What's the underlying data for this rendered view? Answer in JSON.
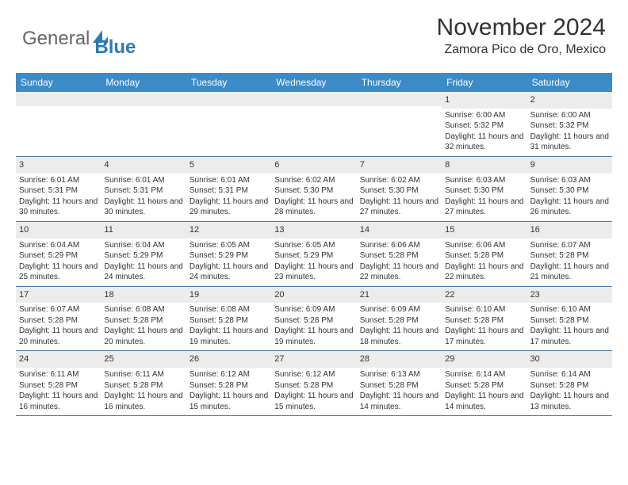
{
  "logo": {
    "general": "General",
    "blue": "Blue"
  },
  "title": "November 2024",
  "location": "Zamora Pico de Oro, Mexico",
  "colors": {
    "header_bg": "#3b8bc9",
    "header_text": "#ffffff",
    "daynum_bg": "#ececec",
    "row_border": "#4a7aa5",
    "text": "#333333",
    "logo_blue": "#2a7ab9"
  },
  "weekdays": [
    "Sunday",
    "Monday",
    "Tuesday",
    "Wednesday",
    "Thursday",
    "Friday",
    "Saturday"
  ],
  "weeks": [
    [
      {
        "n": "",
        "lines": []
      },
      {
        "n": "",
        "lines": []
      },
      {
        "n": "",
        "lines": []
      },
      {
        "n": "",
        "lines": []
      },
      {
        "n": "",
        "lines": []
      },
      {
        "n": "1",
        "lines": [
          "Sunrise: 6:00 AM",
          "Sunset: 5:32 PM",
          "Daylight: 11 hours and 32 minutes."
        ]
      },
      {
        "n": "2",
        "lines": [
          "Sunrise: 6:00 AM",
          "Sunset: 5:32 PM",
          "Daylight: 11 hours and 31 minutes."
        ]
      }
    ],
    [
      {
        "n": "3",
        "lines": [
          "Sunrise: 6:01 AM",
          "Sunset: 5:31 PM",
          "Daylight: 11 hours and 30 minutes."
        ]
      },
      {
        "n": "4",
        "lines": [
          "Sunrise: 6:01 AM",
          "Sunset: 5:31 PM",
          "Daylight: 11 hours and 30 minutes."
        ]
      },
      {
        "n": "5",
        "lines": [
          "Sunrise: 6:01 AM",
          "Sunset: 5:31 PM",
          "Daylight: 11 hours and 29 minutes."
        ]
      },
      {
        "n": "6",
        "lines": [
          "Sunrise: 6:02 AM",
          "Sunset: 5:30 PM",
          "Daylight: 11 hours and 28 minutes."
        ]
      },
      {
        "n": "7",
        "lines": [
          "Sunrise: 6:02 AM",
          "Sunset: 5:30 PM",
          "Daylight: 11 hours and 27 minutes."
        ]
      },
      {
        "n": "8",
        "lines": [
          "Sunrise: 6:03 AM",
          "Sunset: 5:30 PM",
          "Daylight: 11 hours and 27 minutes."
        ]
      },
      {
        "n": "9",
        "lines": [
          "Sunrise: 6:03 AM",
          "Sunset: 5:30 PM",
          "Daylight: 11 hours and 26 minutes."
        ]
      }
    ],
    [
      {
        "n": "10",
        "lines": [
          "Sunrise: 6:04 AM",
          "Sunset: 5:29 PM",
          "Daylight: 11 hours and 25 minutes."
        ]
      },
      {
        "n": "11",
        "lines": [
          "Sunrise: 6:04 AM",
          "Sunset: 5:29 PM",
          "Daylight: 11 hours and 24 minutes."
        ]
      },
      {
        "n": "12",
        "lines": [
          "Sunrise: 6:05 AM",
          "Sunset: 5:29 PM",
          "Daylight: 11 hours and 24 minutes."
        ]
      },
      {
        "n": "13",
        "lines": [
          "Sunrise: 6:05 AM",
          "Sunset: 5:29 PM",
          "Daylight: 11 hours and 23 minutes."
        ]
      },
      {
        "n": "14",
        "lines": [
          "Sunrise: 6:06 AM",
          "Sunset: 5:28 PM",
          "Daylight: 11 hours and 22 minutes."
        ]
      },
      {
        "n": "15",
        "lines": [
          "Sunrise: 6:06 AM",
          "Sunset: 5:28 PM",
          "Daylight: 11 hours and 22 minutes."
        ]
      },
      {
        "n": "16",
        "lines": [
          "Sunrise: 6:07 AM",
          "Sunset: 5:28 PM",
          "Daylight: 11 hours and 21 minutes."
        ]
      }
    ],
    [
      {
        "n": "17",
        "lines": [
          "Sunrise: 6:07 AM",
          "Sunset: 5:28 PM",
          "Daylight: 11 hours and 20 minutes."
        ]
      },
      {
        "n": "18",
        "lines": [
          "Sunrise: 6:08 AM",
          "Sunset: 5:28 PM",
          "Daylight: 11 hours and 20 minutes."
        ]
      },
      {
        "n": "19",
        "lines": [
          "Sunrise: 6:08 AM",
          "Sunset: 5:28 PM",
          "Daylight: 11 hours and 19 minutes."
        ]
      },
      {
        "n": "20",
        "lines": [
          "Sunrise: 6:09 AM",
          "Sunset: 5:28 PM",
          "Daylight: 11 hours and 19 minutes."
        ]
      },
      {
        "n": "21",
        "lines": [
          "Sunrise: 6:09 AM",
          "Sunset: 5:28 PM",
          "Daylight: 11 hours and 18 minutes."
        ]
      },
      {
        "n": "22",
        "lines": [
          "Sunrise: 6:10 AM",
          "Sunset: 5:28 PM",
          "Daylight: 11 hours and 17 minutes."
        ]
      },
      {
        "n": "23",
        "lines": [
          "Sunrise: 6:10 AM",
          "Sunset: 5:28 PM",
          "Daylight: 11 hours and 17 minutes."
        ]
      }
    ],
    [
      {
        "n": "24",
        "lines": [
          "Sunrise: 6:11 AM",
          "Sunset: 5:28 PM",
          "Daylight: 11 hours and 16 minutes."
        ]
      },
      {
        "n": "25",
        "lines": [
          "Sunrise: 6:11 AM",
          "Sunset: 5:28 PM",
          "Daylight: 11 hours and 16 minutes."
        ]
      },
      {
        "n": "26",
        "lines": [
          "Sunrise: 6:12 AM",
          "Sunset: 5:28 PM",
          "Daylight: 11 hours and 15 minutes."
        ]
      },
      {
        "n": "27",
        "lines": [
          "Sunrise: 6:12 AM",
          "Sunset: 5:28 PM",
          "Daylight: 11 hours and 15 minutes."
        ]
      },
      {
        "n": "28",
        "lines": [
          "Sunrise: 6:13 AM",
          "Sunset: 5:28 PM",
          "Daylight: 11 hours and 14 minutes."
        ]
      },
      {
        "n": "29",
        "lines": [
          "Sunrise: 6:14 AM",
          "Sunset: 5:28 PM",
          "Daylight: 11 hours and 14 minutes."
        ]
      },
      {
        "n": "30",
        "lines": [
          "Sunrise: 6:14 AM",
          "Sunset: 5:28 PM",
          "Daylight: 11 hours and 13 minutes."
        ]
      }
    ]
  ]
}
